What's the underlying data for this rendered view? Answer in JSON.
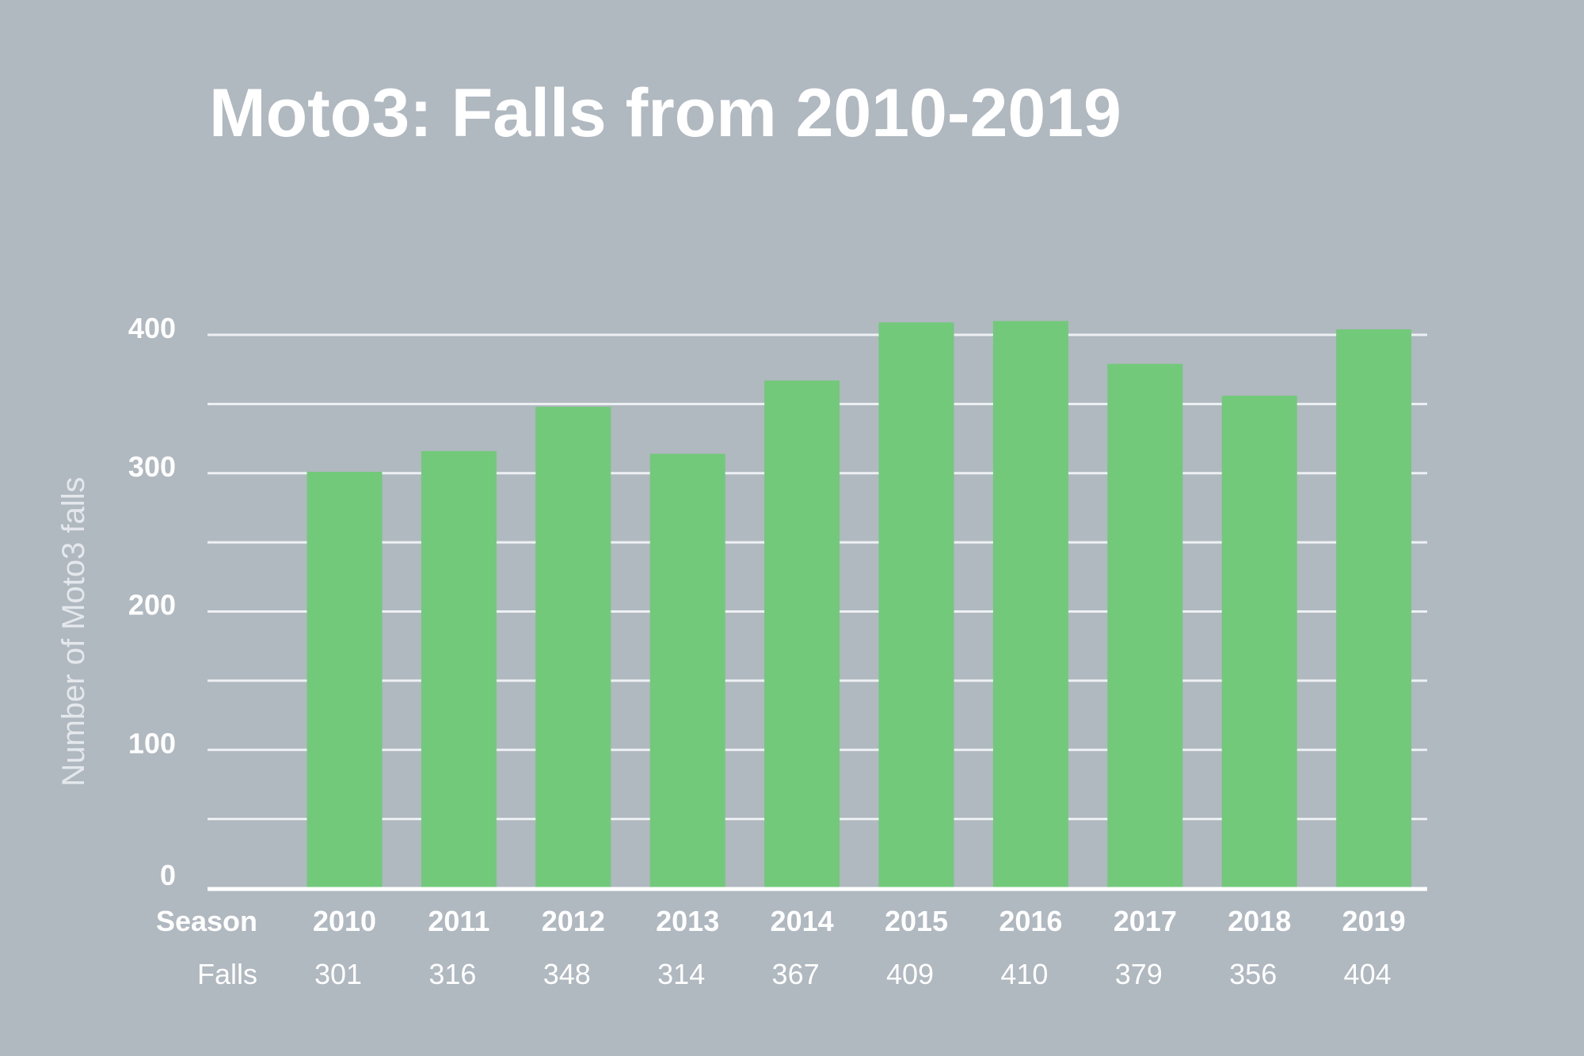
{
  "chart_data": {
    "type": "bar",
    "title": "Moto3: Falls from 2010-2019",
    "ylabel": "Number of Moto3 falls",
    "xlabel": "Season",
    "row_label": "Falls",
    "categories": [
      "2010",
      "2011",
      "2012",
      "2013",
      "2014",
      "2015",
      "2016",
      "2017",
      "2018",
      "2019"
    ],
    "values": [
      301,
      316,
      348,
      314,
      367,
      409,
      410,
      379,
      356,
      404
    ],
    "value_labels": [
      "301",
      "316",
      "348",
      "314",
      "367",
      "409",
      "410",
      "379",
      "356",
      "404"
    ],
    "ylim": [
      0,
      400
    ],
    "yticks": [
      0,
      100,
      200,
      300,
      400
    ],
    "ytick_labels": [
      "0",
      "100",
      "200",
      "300",
      "400"
    ],
    "grid": true,
    "colors": {
      "background": "#b0b8c0",
      "bar": "#72c97a",
      "text": "#ffffff",
      "grid": "#eef1f4",
      "axis": "#ffffff"
    }
  }
}
